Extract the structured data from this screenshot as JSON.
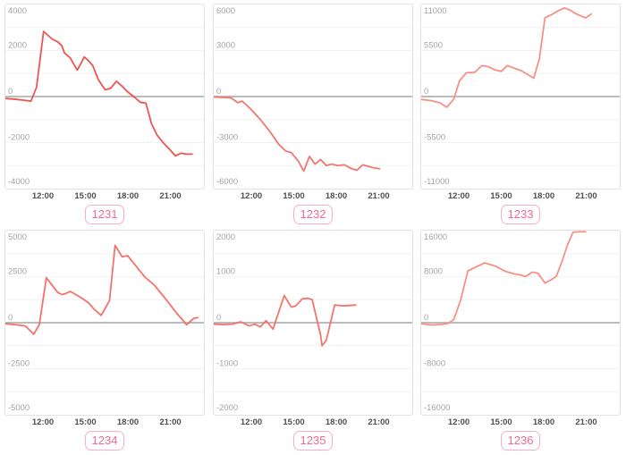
{
  "colors": {
    "grid_line": "#f2f2f2",
    "zero_line": "#b3b3b3",
    "box_border": "#e2e2e2",
    "y_tick_color": "#a3a3a3",
    "x_tick_color": "#4f4f4f",
    "badge_border": "#f8afc2",
    "badge_text": "#ef6a90"
  },
  "x_axis": {
    "xlim": [
      9.28,
      23.43
    ],
    "ticks": [
      "12:00",
      "15:00",
      "18:00",
      "21:00"
    ],
    "tick_hours": [
      12,
      15,
      18,
      21
    ]
  },
  "chart_data": [
    {
      "type": "line",
      "badge_label": "1231",
      "line_color": "#ef5350",
      "ylim": [
        -4000,
        4000
      ],
      "grid_step": 1000,
      "y_ticks": [
        {
          "label": "4000",
          "value": 4000
        },
        {
          "label": "2000",
          "value": 2000
        },
        {
          "label": "0",
          "value": 0
        },
        {
          "label": "-2000",
          "value": -2000
        },
        {
          "label": "-4000",
          "value": -4000
        }
      ],
      "series": {
        "x": [
          9.3,
          10.0,
          10.6,
          11.1,
          11.5,
          12.0,
          12.6,
          13.0,
          13.3,
          13.5,
          13.9,
          14.4,
          14.7,
          14.9,
          15.2,
          15.5,
          15.9,
          16.4,
          16.8,
          17.2,
          17.6,
          18.0,
          18.5,
          18.9,
          19.3,
          19.7,
          20.1,
          20.6,
          21.0,
          21.4,
          21.8,
          22.2,
          22.6
        ],
        "y": [
          -80,
          -120,
          -160,
          -200,
          400,
          2830,
          2500,
          2380,
          2210,
          1890,
          1680,
          1150,
          1480,
          1720,
          1560,
          1350,
          740,
          290,
          370,
          660,
          450,
          205,
          -40,
          -250,
          -290,
          -1190,
          -1680,
          -2050,
          -2300,
          -2580,
          -2460,
          -2500,
          -2500
        ]
      }
    },
    {
      "type": "line",
      "badge_label": "1232",
      "line_color": "#f4756d",
      "ylim": [
        -6000,
        6000
      ],
      "grid_step": 1500,
      "y_ticks": [
        {
          "label": "6000",
          "value": 6000
        },
        {
          "label": "3000",
          "value": 3000
        },
        {
          "label": "0",
          "value": 0
        },
        {
          "label": "-3000",
          "value": -3000
        },
        {
          "label": "-6000",
          "value": -6000
        }
      ],
      "series": {
        "x": [
          9.3,
          9.9,
          10.5,
          11.0,
          11.3,
          11.9,
          12.6,
          13.3,
          13.9,
          14.4,
          14.8,
          15.3,
          15.7,
          16.1,
          16.5,
          16.9,
          17.3,
          17.7,
          18.1,
          18.6,
          19.1,
          19.5,
          19.9,
          20.3,
          20.7,
          21.1
        ],
        "y": [
          -30,
          -60,
          -80,
          -400,
          -300,
          -800,
          -1500,
          -2300,
          -3100,
          -3550,
          -3650,
          -4200,
          -4850,
          -3900,
          -4400,
          -4100,
          -4500,
          -4400,
          -4500,
          -4450,
          -4700,
          -4800,
          -4450,
          -4550,
          -4650,
          -4700
        ]
      }
    },
    {
      "type": "line",
      "badge_label": "1233",
      "line_color": "#f78f85",
      "ylim": [
        -11000,
        11000
      ],
      "grid_step": 2750,
      "y_ticks": [
        {
          "label": "11000",
          "value": 11000
        },
        {
          "label": "5500",
          "value": 5500
        },
        {
          "label": "0",
          "value": 0
        },
        {
          "label": "-5500",
          "value": -5500
        },
        {
          "label": "-11000",
          "value": -11000
        }
      ],
      "series": {
        "x": [
          9.3,
          10.0,
          10.6,
          11.1,
          11.6,
          12.0,
          12.5,
          13.1,
          13.6,
          14.0,
          14.5,
          15.0,
          15.4,
          15.9,
          16.4,
          16.9,
          17.3,
          17.7,
          18.1,
          18.6,
          19.1,
          19.5,
          19.9,
          20.3,
          20.7,
          21.0,
          21.4
        ],
        "y": [
          -350,
          -500,
          -750,
          -1280,
          -300,
          1860,
          2850,
          2900,
          3700,
          3600,
          3200,
          3000,
          3700,
          3400,
          3100,
          2600,
          2200,
          4500,
          9400,
          9800,
          10300,
          10600,
          10300,
          9900,
          9600,
          9400,
          9860
        ]
      }
    },
    {
      "type": "line",
      "badge_label": "1234",
      "line_color": "#f4706a",
      "ylim": [
        -5000,
        5000
      ],
      "grid_step": 1250,
      "y_ticks": [
        {
          "label": "5000",
          "value": 5000
        },
        {
          "label": "2500",
          "value": 2500
        },
        {
          "label": "0",
          "value": 0
        },
        {
          "label": "-2500",
          "value": -2500
        },
        {
          "label": "-5000",
          "value": -5000
        }
      ],
      "series": {
        "x": [
          9.3,
          10.0,
          10.7,
          11.3,
          11.7,
          12.2,
          13.0,
          13.3,
          13.6,
          13.9,
          14.3,
          14.8,
          15.2,
          15.6,
          16.1,
          16.7,
          17.1,
          17.6,
          18.0,
          18.6,
          19.2,
          19.9,
          20.5,
          21.1,
          21.5,
          21.9,
          22.2,
          22.7,
          23.0
        ],
        "y": [
          -60,
          -110,
          -180,
          -625,
          -100,
          2440,
          1650,
          1530,
          1590,
          1700,
          1530,
          1300,
          1080,
          740,
          400,
          1190,
          4200,
          3580,
          3640,
          3070,
          2500,
          2045,
          1480,
          910,
          510,
          170,
          -110,
          230,
          280
        ]
      }
    },
    {
      "type": "line",
      "badge_label": "1235",
      "line_color": "#f4736c",
      "ylim": [
        -2000,
        2000
      ],
      "grid_step": 500,
      "y_ticks": [
        {
          "label": "2000",
          "value": 2000
        },
        {
          "label": "1000",
          "value": 1000
        },
        {
          "label": "0",
          "value": 0
        },
        {
          "label": "-1000",
          "value": -1000
        },
        {
          "label": "-2000",
          "value": -2000
        }
      ],
      "series": {
        "x": [
          9.3,
          10.0,
          10.6,
          11.2,
          11.8,
          12.2,
          12.6,
          13.0,
          13.5,
          14.3,
          14.8,
          15.1,
          15.6,
          16.0,
          16.3,
          16.9,
          17.0,
          17.3,
          17.9,
          18.5,
          19.4
        ],
        "y": [
          -30,
          -40,
          -30,
          20,
          -70,
          -30,
          -90,
          45,
          -140,
          590,
          340,
          360,
          520,
          530,
          500,
          -270,
          -500,
          -385,
          385,
          365,
          385
        ]
      }
    },
    {
      "type": "line",
      "badge_label": "1236",
      "line_color": "#f78f85",
      "ylim": [
        -16000,
        16000
      ],
      "grid_step": 4000,
      "y_ticks": [
        {
          "label": "16000",
          "value": 16000
        },
        {
          "label": "8000",
          "value": 8000
        },
        {
          "label": "0",
          "value": 0
        },
        {
          "label": "-8000",
          "value": -8000
        },
        {
          "label": "-16000",
          "value": -16000
        }
      ],
      "series": {
        "x": [
          9.3,
          10.0,
          10.7,
          11.2,
          11.6,
          12.1,
          12.6,
          13.1,
          13.8,
          14.6,
          15.3,
          15.9,
          16.4,
          16.7,
          17.2,
          17.6,
          18.1,
          18.5,
          18.9,
          19.3,
          19.7,
          20.1,
          20.6,
          21.0
        ],
        "y": [
          -200,
          -400,
          -300,
          -100,
          550,
          4000,
          9000,
          9600,
          10400,
          9800,
          8900,
          8500,
          8300,
          8000,
          8800,
          8600,
          6900,
          7400,
          8000,
          10500,
          13500,
          15700,
          15800,
          15800
        ]
      }
    }
  ]
}
